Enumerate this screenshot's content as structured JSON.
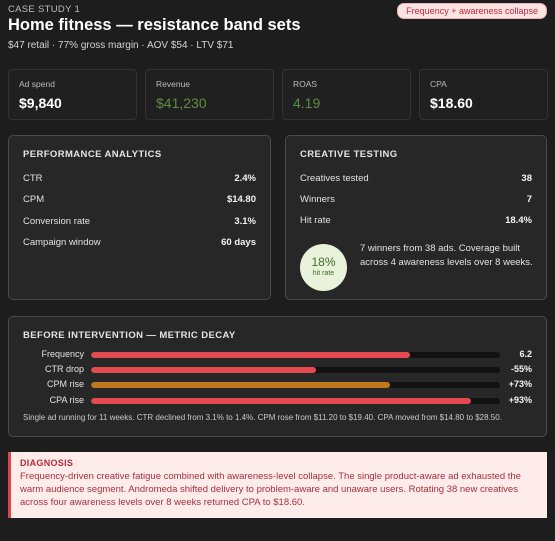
{
  "header": {
    "eyebrow": "CASE STUDY 1",
    "tag": "Frequency + awareness collapse",
    "title": "Home fitness — resistance band sets",
    "subtitle": "$47 retail · 77% gross margin · AOV $54 · LTV $71"
  },
  "kpis": [
    {
      "label": "Ad spend",
      "value": "$9,840"
    },
    {
      "label": "Revenue",
      "value": "$41,230"
    },
    {
      "label": "ROAS",
      "value": "4.19"
    },
    {
      "label": "CPA",
      "value": "$18.60"
    }
  ],
  "colors": {
    "positive": "#5b8f3f",
    "bar_red": "#e34b51",
    "bar_orange": "#c07a1c",
    "alert": "#c0293a"
  },
  "performance": {
    "title": "PERFORMANCE ANALYTICS",
    "rows": [
      {
        "label": "CTR",
        "value": "2.4%"
      },
      {
        "label": "CPM",
        "value": "$14.80"
      },
      {
        "label": "Conversion rate",
        "value": "3.1%"
      },
      {
        "label": "Campaign window",
        "value": "60 days"
      }
    ]
  },
  "creative": {
    "title": "CREATIVE TESTING",
    "rows": [
      {
        "label": "Creatives tested",
        "value": "38"
      },
      {
        "label": "Winners",
        "value": "7"
      },
      {
        "label": "Hit rate",
        "value": "18.4%"
      }
    ],
    "hit_pct": "18%",
    "hit_label": "hit rate",
    "summary": "7 winners from 38 ads. Coverage built across 4 awareness levels over 8 weeks."
  },
  "decay": {
    "title": "BEFORE INTERVENTION — METRIC DECAY",
    "bars": [
      {
        "label": "Frequency",
        "value": "6.2",
        "level": 0.78,
        "color": "#e34b51"
      },
      {
        "label": "CTR drop",
        "value": "-55%",
        "level": 0.55,
        "color": "#e34b51"
      },
      {
        "label": "CPM rise",
        "value": "+73%",
        "level": 0.73,
        "color": "#c07a1c"
      },
      {
        "label": "CPA rise",
        "value": "+93%",
        "level": 0.93,
        "color": "#e34b51"
      }
    ],
    "note": "Single ad running for 11 weeks. CTR declined from 3.1% to 1.4%. CPM rose from $11.20 to $19.40. CPA moved from $14.80 to $28.50."
  },
  "diagnosis": {
    "title": "DIAGNOSIS",
    "body": "Frequency-driven creative fatigue combined with awareness-level collapse. The single product-aware ad exhausted the warm audience segment. Andromeda shifted delivery to problem-aware and unaware users. Rotating 38 new creatives across four awareness levels over 8 weeks returned CPA to $18.60."
  }
}
